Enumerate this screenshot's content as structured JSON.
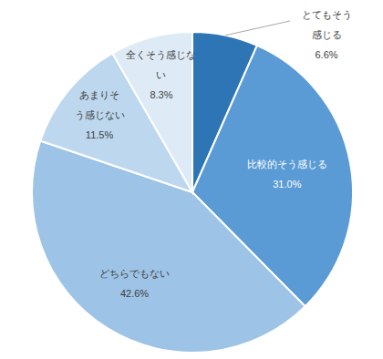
{
  "chart_data": {
    "type": "pie",
    "categories": [
      "とてもそう感じる",
      "比較的そう感じる",
      "どちらでもない",
      "あまりそう感じない",
      "全くそう感じない"
    ],
    "values": [
      6.6,
      31.0,
      42.6,
      11.5,
      8.3
    ],
    "value_labels": [
      "6.6%",
      "31.0%",
      "42.6%",
      "11.5%",
      "8.3%"
    ],
    "colors": [
      "#2e75b6",
      "#5b9bd5",
      "#9dc3e6",
      "#bdd7ee",
      "#deebf7"
    ],
    "data_labels": true
  }
}
